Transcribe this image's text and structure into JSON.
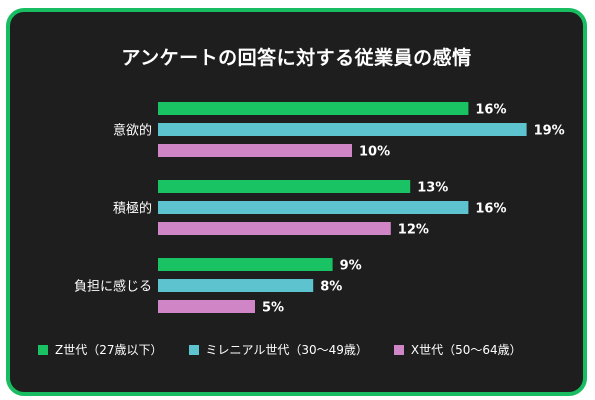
{
  "chart_data": {
    "type": "bar",
    "orientation": "horizontal",
    "title": "アンケートの回答に対する従業員の感情",
    "categories": [
      "意欲的",
      "積極的",
      "負担に感じる"
    ],
    "series": [
      {
        "name": "Z世代（27歳以下）",
        "color": "#19c262",
        "values": [
          16,
          13,
          9
        ],
        "labels": [
          "16%",
          "13%",
          "9%"
        ]
      },
      {
        "name": "ミレニアル世代（30〜49歳）",
        "color": "#5dc3ce",
        "values": [
          19,
          16,
          8
        ],
        "labels": [
          "19%",
          "16%",
          "8%"
        ]
      },
      {
        "name": "X世代（50〜64歳）",
        "color": "#cf85c6",
        "values": [
          10,
          12,
          5
        ],
        "labels": [
          "10%",
          "12%",
          "5%"
        ]
      }
    ],
    "xlim": [
      0,
      19
    ],
    "grid": false,
    "legend_position": "bottom"
  }
}
